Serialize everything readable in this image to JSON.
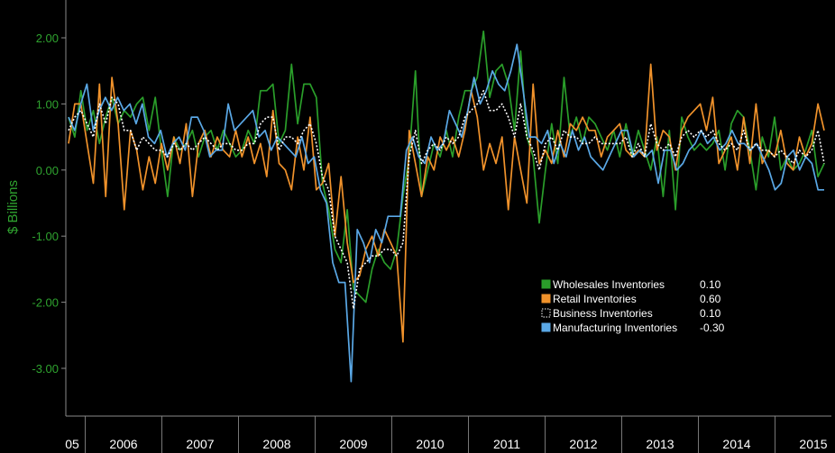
{
  "chart_data": {
    "type": "line",
    "title": "",
    "xlabel": "",
    "ylabel": "$ Billions",
    "ylim": [
      -3.6,
      2.6
    ],
    "yticks": [
      2.0,
      1.0,
      0.0,
      -1.0,
      -2.0,
      -3.0
    ],
    "ytick_labels": [
      "2.00",
      "1.00",
      "0.00",
      "-1.00",
      "-2.00",
      "-3.00"
    ],
    "xlim": [
      2005.85,
      2015.6
    ],
    "xtick_labels": [
      {
        "year": 2005,
        "label": "05"
      },
      {
        "year": 2006,
        "label": "2006"
      },
      {
        "year": 2007,
        "label": "2007"
      },
      {
        "year": 2008,
        "label": "2008"
      },
      {
        "year": 2009,
        "label": "2009"
      },
      {
        "year": 2010,
        "label": "2010"
      },
      {
        "year": 2011,
        "label": "2011"
      },
      {
        "year": 2012,
        "label": "2012"
      },
      {
        "year": 2013,
        "label": "2013"
      },
      {
        "year": 2014,
        "label": "2014"
      },
      {
        "year": 2015,
        "label": "2015"
      }
    ],
    "x_start": 2005.92,
    "x_step": 0.08333,
    "legend_position": "center-right",
    "series": [
      {
        "name": "Wholesales Inventories",
        "last_value": "0.10",
        "color": "#2a9e2a",
        "style": "solid",
        "values": [
          0.8,
          0.5,
          1.2,
          0.6,
          0.9,
          0.4,
          0.8,
          1.1,
          0.7,
          0.9,
          0.8,
          1.0,
          1.1,
          0.6,
          1.1,
          0.3,
          -0.4,
          0.5,
          0.3,
          0.4,
          0.6,
          0.2,
          0.5,
          0.6,
          0.3,
          0.6,
          0.4,
          0.2,
          0.3,
          0.6,
          0.4,
          1.2,
          1.2,
          1.3,
          0.4,
          0.6,
          1.6,
          0.7,
          1.3,
          1.3,
          1.1,
          -0.2,
          -0.6,
          -1.2,
          -1.4,
          -0.6,
          -1.8,
          -1.9,
          -2.0,
          -1.5,
          -1.2,
          -1.4,
          -1.5,
          -1.2,
          -0.4,
          0.2,
          1.5,
          -0.4,
          0.0,
          0.4,
          0.2,
          0.6,
          0.2,
          0.8,
          1.2,
          1.2,
          1.4,
          2.1,
          1.1,
          1.5,
          1.6,
          1.3,
          0.6,
          1.8,
          0.5,
          0.2,
          -0.8,
          0.0,
          0.7,
          0.1,
          1.4,
          0.5,
          0.8,
          0.4,
          0.8,
          0.7,
          0.5,
          0.3,
          0.6,
          0.2,
          0.7,
          0.2,
          0.6,
          0.3,
          0.0,
          0.5,
          -0.4,
          0.6,
          -0.6,
          0.8,
          0.5,
          0.3,
          0.4,
          0.3,
          0.4,
          0.6,
          0.0,
          0.7,
          0.9,
          0.8,
          0.3,
          -0.3,
          0.5,
          0.2,
          0.8,
          0.0,
          0.2,
          0.0,
          0.1,
          0.3,
          0.6,
          -0.1,
          0.1
        ]
      },
      {
        "name": "Retail Inventories",
        "last_value": "0.60",
        "color": "#f0922b",
        "style": "solid",
        "values": [
          0.4,
          1.0,
          1.0,
          0.4,
          -0.2,
          1.3,
          -0.4,
          1.4,
          0.7,
          -0.6,
          0.6,
          0.3,
          -0.3,
          0.2,
          -0.2,
          0.4,
          0.0,
          0.5,
          0.1,
          0.7,
          -0.4,
          0.4,
          0.6,
          0.2,
          0.5,
          0.3,
          0.2,
          0.6,
          0.2,
          0.5,
          0.1,
          0.4,
          -0.1,
          0.9,
          0.1,
          0.0,
          -0.3,
          0.5,
          0.0,
          0.8,
          -0.3,
          -0.2,
          0.1,
          -1.0,
          -0.1,
          -1.1,
          -1.7,
          -1.6,
          -1.2,
          -1.0,
          -1.3,
          -0.9,
          -1.1,
          -1.3,
          -2.6,
          0.6,
          0.1,
          -0.4,
          0.2,
          0.0,
          0.5,
          0.3,
          0.5,
          0.2,
          0.6,
          1.2,
          0.8,
          0.0,
          0.4,
          0.1,
          0.5,
          -0.6,
          0.5,
          0.0,
          -0.5,
          1.3,
          0.1,
          0.3,
          0.1,
          0.6,
          0.2,
          0.7,
          0.6,
          0.8,
          0.6,
          0.6,
          0.2,
          0.5,
          0.6,
          0.7,
          0.3,
          0.2,
          0.3,
          0.2,
          1.6,
          0.3,
          0.6,
          0.5,
          0.0,
          0.6,
          0.8,
          0.9,
          1.0,
          0.6,
          1.1,
          0.1,
          0.3,
          0.5,
          0.0,
          0.8,
          0.1,
          1.0,
          0.1,
          0.3,
          0.2,
          0.6,
          0.1,
          0.0,
          0.5,
          0.2,
          0.4,
          1.0,
          0.6
        ]
      },
      {
        "name": "Business Inventories",
        "last_value": "0.10",
        "color": "#ffffff",
        "style": "dotted",
        "values": [
          0.6,
          0.8,
          0.9,
          0.7,
          0.5,
          1.0,
          0.7,
          1.1,
          1.0,
          0.6,
          0.6,
          0.3,
          0.5,
          0.4,
          0.3,
          0.3,
          0.2,
          0.4,
          0.3,
          0.4,
          0.3,
          0.4,
          0.5,
          0.4,
          0.3,
          0.4,
          0.4,
          0.3,
          0.3,
          0.4,
          0.4,
          0.7,
          0.8,
          0.8,
          0.3,
          0.5,
          0.5,
          0.4,
          0.6,
          0.7,
          0.4,
          -0.1,
          -0.3,
          -1.0,
          -1.2,
          -1.4,
          -2.1,
          -1.5,
          -1.4,
          -1.3,
          -1.3,
          -1.2,
          -1.2,
          -1.3,
          -1.1,
          0.2,
          0.6,
          0.1,
          0.3,
          0.4,
          0.3,
          0.5,
          0.4,
          0.5,
          0.8,
          0.9,
          1.0,
          1.2,
          0.9,
          0.9,
          1.0,
          0.8,
          0.5,
          1.0,
          0.5,
          0.3,
          0.0,
          0.4,
          0.5,
          0.3,
          0.6,
          0.5,
          0.5,
          0.4,
          0.4,
          0.5,
          0.4,
          0.4,
          0.4,
          0.4,
          0.5,
          0.2,
          0.4,
          0.2,
          0.7,
          0.4,
          0.3,
          0.4,
          0.2,
          0.5,
          0.6,
          0.5,
          0.6,
          0.5,
          0.6,
          0.4,
          0.3,
          0.4,
          0.3,
          0.6,
          0.3,
          0.4,
          0.3,
          0.3,
          0.2,
          0.3,
          0.2,
          0.1,
          0.3,
          0.2,
          0.3,
          0.6,
          0.1
        ]
      },
      {
        "name": "Manufacturing Inventories",
        "last_value": "-0.30",
        "color": "#5aa8e6",
        "style": "solid",
        "values": [
          0.8,
          0.6,
          1.0,
          1.3,
          0.6,
          0.9,
          1.1,
          0.9,
          1.1,
          0.9,
          1.0,
          0.7,
          1.0,
          0.5,
          0.4,
          0.6,
          0.2,
          0.4,
          0.5,
          0.3,
          0.8,
          0.8,
          0.6,
          0.2,
          0.3,
          0.3,
          1.0,
          0.6,
          0.7,
          0.8,
          0.9,
          0.5,
          0.6,
          0.3,
          0.5,
          0.4,
          0.3,
          0.2,
          0.5,
          0.1,
          0.2,
          -0.3,
          -0.5,
          -1.4,
          -1.7,
          -1.7,
          -3.2,
          -0.9,
          -1.1,
          -1.4,
          -0.9,
          -1.1,
          -0.7,
          -0.7,
          -0.7,
          0.3,
          0.5,
          0.2,
          0.1,
          0.5,
          0.3,
          0.4,
          0.9,
          0.7,
          0.5,
          0.9,
          1.4,
          1.0,
          1.2,
          1.5,
          1.3,
          1.2,
          1.5,
          1.9,
          1.2,
          0.5,
          0.5,
          0.4,
          0.6,
          0.1,
          0.4,
          0.2,
          0.6,
          0.3,
          0.5,
          0.2,
          0.1,
          0.0,
          0.2,
          0.4,
          0.6,
          0.6,
          0.2,
          0.3,
          0.2,
          0.3,
          -0.2,
          0.3,
          0.3,
          0.0,
          0.1,
          0.3,
          0.4,
          0.6,
          0.4,
          0.5,
          0.3,
          0.4,
          0.6,
          0.4,
          0.4,
          0.3,
          0.4,
          0.2,
          0.0,
          -0.3,
          -0.2,
          0.2,
          0.3,
          0.0,
          0.2,
          0.1,
          -0.3,
          -0.3
        ]
      }
    ]
  }
}
